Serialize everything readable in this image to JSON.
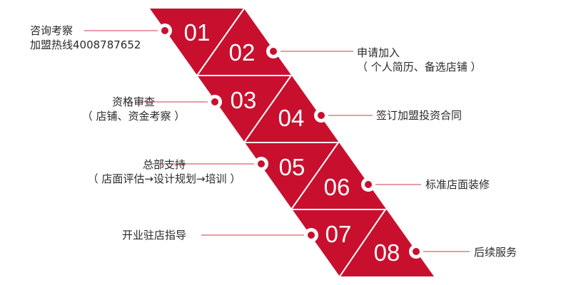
{
  "colors": {
    "band": "#c8102e",
    "divider": "#ffffff",
    "connector": "#d63a4c",
    "dot_outer": "#ffffff",
    "dot_inner": "#c8102e",
    "text": "#2a2a2a"
  },
  "steps": [
    {
      "num": "01",
      "title": "咨询考察",
      "sub": "加盟热线4008787652"
    },
    {
      "num": "02",
      "title": "申请加入",
      "sub": "（ 个人简历、备选店铺 ）"
    },
    {
      "num": "03",
      "title": "资格审查",
      "sub": "（ 店铺、资金考察 ）"
    },
    {
      "num": "04",
      "title": "签订加盟投资合同",
      "sub": ""
    },
    {
      "num": "05",
      "title": "总部支持",
      "sub": "（ 店面评估→设计规划→培训 ）"
    },
    {
      "num": "06",
      "title": "标准店面装修",
      "sub": ""
    },
    {
      "num": "07",
      "title": "开业驻店指导",
      "sub": ""
    },
    {
      "num": "08",
      "title": "后续服务",
      "sub": ""
    }
  ]
}
